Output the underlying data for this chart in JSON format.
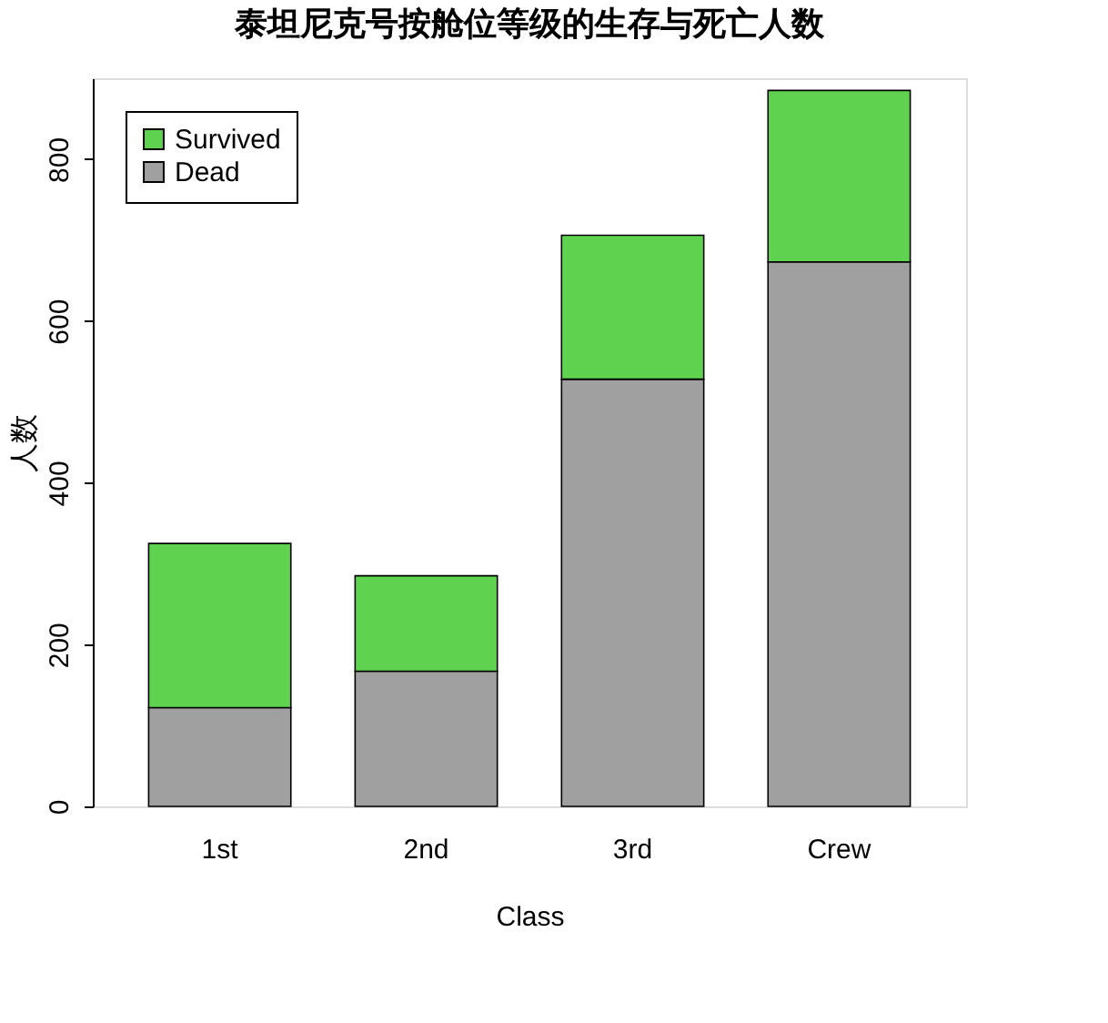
{
  "chart_data": {
    "type": "bar",
    "title": "泰坦尼克号按舱位等级的生存与死亡人数",
    "xlabel": "Class",
    "ylabel": "人数",
    "categories": [
      "1st",
      "2nd",
      "3rd",
      "Crew"
    ],
    "series": [
      {
        "name": "Dead",
        "color": "#a0a0a0",
        "values": [
          122,
          167,
          528,
          673
        ]
      },
      {
        "name": "Survived",
        "color": "#5fd350",
        "values": [
          203,
          118,
          178,
          212
        ]
      }
    ],
    "stacked": true,
    "ylim": [
      0,
      900
    ],
    "yticks": [
      0,
      200,
      400,
      600,
      800
    ],
    "grid": false,
    "legend": "top left"
  }
}
